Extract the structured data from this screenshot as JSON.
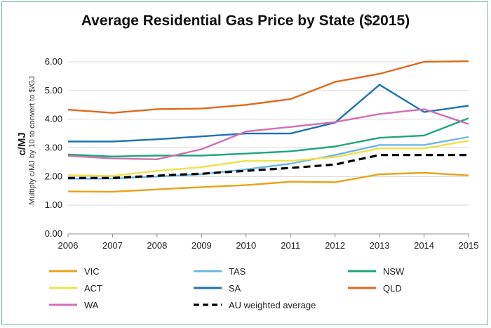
{
  "chart_data": {
    "type": "line",
    "title": "Average Residential Gas Price by State ($2015)",
    "ylabel": "c/MJ",
    "ylabel_note": "Multiply c/MJ by 10 to convert to $/GJ",
    "xlabel": "",
    "ylim": [
      0,
      6
    ],
    "yticks": [
      "0.00",
      "1.00",
      "2.00",
      "3.00",
      "4.00",
      "5.00",
      "6.00"
    ],
    "x": [
      2006,
      2007,
      2008,
      2009,
      2010,
      2011,
      2012,
      2013,
      2014,
      2015
    ],
    "x_labels": [
      "2006",
      "2007",
      "2008",
      "2009",
      "2010",
      "2011",
      "2012",
      "2013",
      "2014",
      "2015"
    ],
    "grid": true,
    "legend_position": "bottom",
    "series": [
      {
        "name": "VIC",
        "color": "#e8a317",
        "dash": "solid",
        "values": [
          1.48,
          1.47,
          1.55,
          1.63,
          1.7,
          1.82,
          1.8,
          2.08,
          2.13,
          2.04
        ]
      },
      {
        "name": "TAS",
        "color": "#6ab7e6",
        "dash": "solid",
        "values": [
          1.92,
          1.93,
          2.0,
          2.08,
          2.25,
          2.45,
          2.75,
          3.1,
          3.1,
          3.38
        ]
      },
      {
        "name": "NSW",
        "color": "#1ea67a",
        "dash": "solid",
        "values": [
          2.77,
          2.7,
          2.73,
          2.73,
          2.8,
          2.88,
          3.05,
          3.35,
          3.43,
          4.03
        ]
      },
      {
        "name": "ACT",
        "color": "#f0e14a",
        "dash": "solid",
        "values": [
          2.05,
          2.02,
          2.2,
          2.33,
          2.55,
          2.55,
          2.68,
          2.98,
          2.98,
          3.25
        ]
      },
      {
        "name": "SA",
        "color": "#1c73b4",
        "dash": "solid",
        "values": [
          3.22,
          3.22,
          3.3,
          3.4,
          3.5,
          3.5,
          3.88,
          5.2,
          4.25,
          4.47
        ]
      },
      {
        "name": "QLD",
        "color": "#e0691c",
        "dash": "solid",
        "values": [
          4.33,
          4.22,
          4.35,
          4.37,
          4.5,
          4.7,
          5.3,
          5.58,
          6.0,
          6.02
        ]
      },
      {
        "name": "WA",
        "color": "#d36fb0",
        "dash": "solid",
        "values": [
          2.72,
          2.63,
          2.6,
          2.95,
          3.57,
          3.73,
          3.9,
          4.18,
          4.35,
          3.83
        ]
      },
      {
        "name": "AU weighted average",
        "color": "#000000",
        "dash": "dashed",
        "values": [
          1.95,
          1.95,
          2.03,
          2.1,
          2.2,
          2.3,
          2.42,
          2.75,
          2.75,
          2.75
        ]
      }
    ]
  }
}
